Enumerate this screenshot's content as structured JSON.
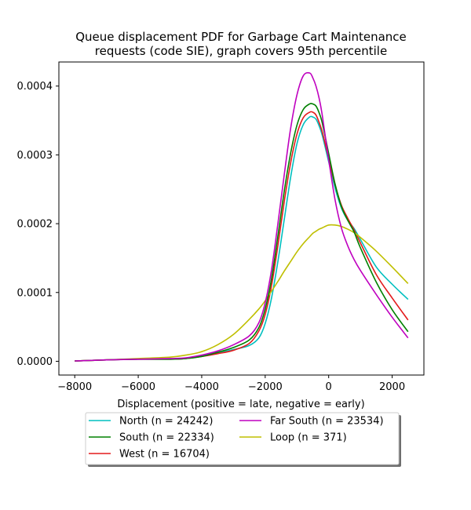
{
  "chart_data": {
    "type": "line",
    "title": "Queue displacement PDF for Garbage Cart Maintenance requests (code SIE), graph covers 95th percentile",
    "title_lines": [
      "Queue displacement PDF for Garbage Cart Maintenance",
      "requests (code SIE), graph covers 95th percentile"
    ],
    "xlabel": "Displacement (positive = late, negative = early)",
    "ylabel": "",
    "xlim": [
      -8500,
      3000
    ],
    "ylim": [
      -2e-05,
      0.000435
    ],
    "xticks": [
      -8000,
      -6000,
      -4000,
      -2000,
      0,
      2000
    ],
    "xtick_labels": [
      "−8000",
      "−6000",
      "−4000",
      "−2000",
      "0",
      "2000"
    ],
    "yticks": [
      0.0,
      0.0001,
      0.0002,
      0.0003,
      0.0004
    ],
    "ytick_labels": [
      "0.0000",
      "0.0001",
      "0.0002",
      "0.0003",
      "0.0004"
    ],
    "grid": false,
    "legend_placement": "bottom-center, below x-axis",
    "x": [
      -8000,
      -7000,
      -6000,
      -5000,
      -4500,
      -4000,
      -3500,
      -3000,
      -2500,
      -2200,
      -2000,
      -1800,
      -1600,
      -1400,
      -1200,
      -1000,
      -800,
      -600,
      -500,
      -400,
      -300,
      -200,
      0,
      200,
      400,
      600,
      800,
      1000,
      1500,
      2000,
      2500
    ],
    "series": [
      {
        "name": "North (n = 24242)",
        "color": "#00bfbf",
        "values": [
          5e-07,
          2e-06,
          3e-06,
          3e-06,
          4e-06,
          8e-06,
          1.2e-05,
          1.7e-05,
          2.3e-05,
          3.4e-05,
          5.5e-05,
          9.2e-05,
          0.000145,
          0.000206,
          0.000267,
          0.000316,
          0.000344,
          0.000355,
          0.000355,
          0.000352,
          0.000342,
          0.000328,
          0.00029,
          0.000252,
          0.000223,
          0.000205,
          0.000193,
          0.000177,
          0.000137,
          0.000112,
          9e-05
        ]
      },
      {
        "name": "West (n = 16704)",
        "color": "#e31a1c",
        "values": [
          5e-07,
          2e-06,
          3e-06,
          3e-06,
          4e-06,
          7e-06,
          1.1e-05,
          1.6e-05,
          2.6e-05,
          4.4e-05,
          6.8e-05,
          0.00011,
          0.000168,
          0.000232,
          0.000288,
          0.00033,
          0.000354,
          0.000362,
          0.000362,
          0.000358,
          0.000347,
          0.000333,
          0.000295,
          0.000257,
          0.000227,
          0.000208,
          0.000191,
          0.000172,
          0.000126,
          9.2e-05,
          6e-05
        ]
      },
      {
        "name": "Loop (n = 371)",
        "color": "#bfbf00",
        "values": [
          5e-07,
          2e-06,
          4e-06,
          6e-06,
          9e-06,
          1.4e-05,
          2.4e-05,
          3.9e-05,
          6.1e-05,
          7.6e-05,
          8.8e-05,
          0.000102,
          0.000116,
          0.000131,
          0.000145,
          0.000159,
          0.000171,
          0.000181,
          0.000186,
          0.000189,
          0.000192,
          0.000194,
          0.000198,
          0.000198,
          0.000196,
          0.000192,
          0.000187,
          0.00018,
          0.00016,
          0.000137,
          0.000113
        ]
      },
      {
        "name": "South (n = 22334)",
        "color": "#008000",
        "values": [
          5e-07,
          2e-06,
          3e-06,
          3e-06,
          4e-06,
          7e-06,
          1.3e-05,
          2e-05,
          3.1e-05,
          4.9e-05,
          7.6e-05,
          0.00012,
          0.000182,
          0.000247,
          0.000302,
          0.000343,
          0.000366,
          0.000374,
          0.000374,
          0.000371,
          0.000361,
          0.000346,
          0.000302,
          0.000258,
          0.000225,
          0.000205,
          0.000188,
          0.000165,
          0.000115,
          7.5e-05,
          4.3e-05
        ]
      },
      {
        "name": "Far South (n = 23534)",
        "color": "#bf00bf",
        "values": [
          5e-07,
          2e-06,
          3e-06,
          4e-06,
          5e-06,
          9e-06,
          1.5e-05,
          2.4e-05,
          3.7e-05,
          5.6e-05,
          8.5e-05,
          0.000133,
          0.0002,
          0.000271,
          0.000338,
          0.000387,
          0.000415,
          0.000419,
          0.000412,
          0.0004,
          0.000382,
          0.000357,
          0.000293,
          0.000235,
          0.000194,
          0.000168,
          0.000148,
          0.000132,
          9.7e-05,
          6.4e-05,
          3.4e-05
        ]
      }
    ],
    "legend_order": [
      0,
      3,
      1,
      4,
      2
    ]
  }
}
